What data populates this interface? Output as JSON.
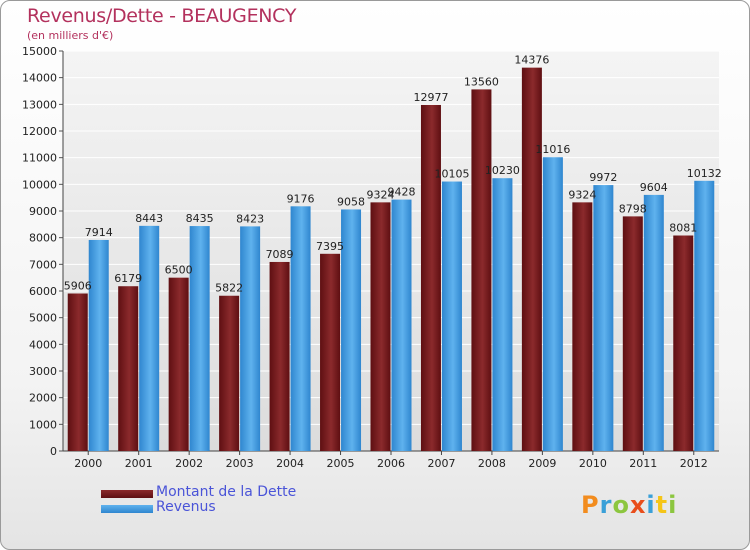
{
  "title": "Revenus/Dette - BEAUGENCY",
  "subtitle": "(en milliers d'€)",
  "logo": {
    "text": "Proxiti",
    "colors": [
      "#f28c1e",
      "#3aa0d8",
      "#8cc63f",
      "#e94e1b",
      "#3aa0d8",
      "#f5c518",
      "#8cc63f"
    ]
  },
  "chart_data": {
    "type": "bar",
    "categories": [
      "2000",
      "2001",
      "2002",
      "2003",
      "2004",
      "2005",
      "2006",
      "2007",
      "2008",
      "2009",
      "2010",
      "2011",
      "2012"
    ],
    "series": [
      {
        "name": "Montant de la Dette",
        "color": "#7a1a1a",
        "values": [
          5906,
          6179,
          6500,
          5822,
          7089,
          7395,
          9324,
          12977,
          13560,
          14376,
          9324,
          8798,
          8081
        ],
        "labels": [
          "5906",
          "6179",
          "6500",
          "5822",
          "7089",
          "7395",
          "9324",
          "12977",
          "13560",
          "14376",
          "9324",
          "8798",
          "8081"
        ]
      },
      {
        "name": "Revenus",
        "color": "#3d9be3",
        "values": [
          7914,
          8443,
          8435,
          8423,
          9176,
          9058,
          9428,
          10105,
          10230,
          11016,
          9972,
          9604,
          10132
        ],
        "labels": [
          "7914",
          "8443",
          "8435",
          "8423",
          "9176",
          "9058",
          "9428",
          "10105",
          "10230",
          "11016",
          "9972",
          "9604",
          "10132"
        ]
      }
    ],
    "ylim": [
      0,
      15000
    ],
    "yticks": [
      0,
      1000,
      2000,
      3000,
      4000,
      5000,
      6000,
      7000,
      8000,
      9000,
      10000,
      11000,
      12000,
      13000,
      14000,
      15000
    ],
    "ytick_labels": [
      "0",
      "1000",
      "2000",
      "3000",
      "4000",
      "5000",
      "6000",
      "7000",
      "8000",
      "9000",
      "10000",
      "11000",
      "12000",
      "13000",
      "14000",
      "15000"
    ],
    "grid": true,
    "legend": "bottom-left"
  }
}
